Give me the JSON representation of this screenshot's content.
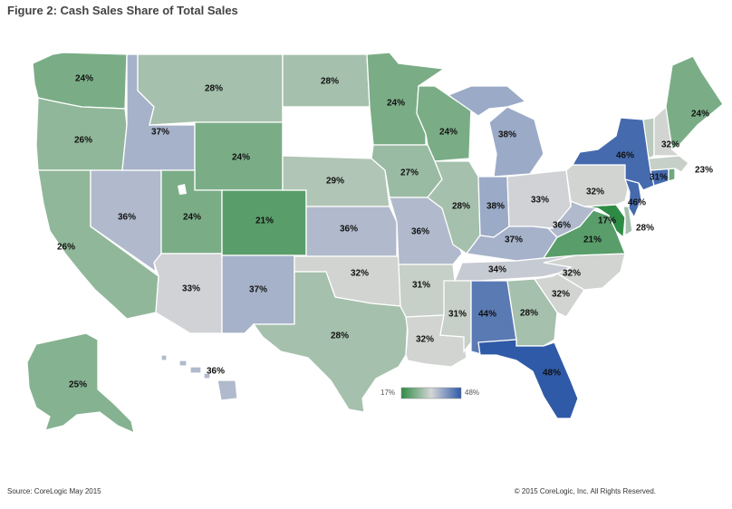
{
  "title": "Figure 2: Cash Sales Share of Total Sales",
  "source": "Source: CoreLogic May 2015",
  "copyright": "© 2015 CoreLogic, Inc. All Rights Reserved.",
  "legend": {
    "min_label": "17%",
    "max_label": "48%",
    "min_value": 17,
    "max_value": 48,
    "color_low": "#2e8b45",
    "color_mid": "#d6d6d6",
    "color_high": "#2f5aa8"
  },
  "states": [
    {
      "id": "WA",
      "label": "24%",
      "value": 24
    },
    {
      "id": "OR",
      "label": "26%",
      "value": 26
    },
    {
      "id": "CA",
      "label": "26%",
      "value": 26
    },
    {
      "id": "ID",
      "label": "37%",
      "value": 37
    },
    {
      "id": "NV",
      "label": "36%",
      "value": 36
    },
    {
      "id": "MT",
      "label": "28%",
      "value": 28
    },
    {
      "id": "WY",
      "label": "24%",
      "value": 24
    },
    {
      "id": "UT",
      "label": "24%",
      "value": 24
    },
    {
      "id": "AZ",
      "label": "33%",
      "value": 33
    },
    {
      "id": "CO",
      "label": "21%",
      "value": 21
    },
    {
      "id": "NM",
      "label": "37%",
      "value": 37
    },
    {
      "id": "ND",
      "label": "28%",
      "value": 28
    },
    {
      "id": "SD",
      "label": "",
      "value": null
    },
    {
      "id": "NE",
      "label": "29%",
      "value": 29
    },
    {
      "id": "KS",
      "label": "36%",
      "value": 36
    },
    {
      "id": "OK",
      "label": "32%",
      "value": 32
    },
    {
      "id": "TX",
      "label": "28%",
      "value": 28
    },
    {
      "id": "MN",
      "label": "24%",
      "value": 24
    },
    {
      "id": "IA",
      "label": "27%",
      "value": 27
    },
    {
      "id": "MO",
      "label": "36%",
      "value": 36
    },
    {
      "id": "AR",
      "label": "31%",
      "value": 31
    },
    {
      "id": "LA",
      "label": "32%",
      "value": 32
    },
    {
      "id": "WI",
      "label": "24%",
      "value": 24
    },
    {
      "id": "IL",
      "label": "28%",
      "value": 28
    },
    {
      "id": "MI",
      "label": "38%",
      "value": 38
    },
    {
      "id": "IN",
      "label": "38%",
      "value": 38
    },
    {
      "id": "OH",
      "label": "33%",
      "value": 33
    },
    {
      "id": "KY",
      "label": "37%",
      "value": 37
    },
    {
      "id": "TN",
      "label": "34%",
      "value": 34
    },
    {
      "id": "MS",
      "label": "31%",
      "value": 31
    },
    {
      "id": "AL",
      "label": "44%",
      "value": 44
    },
    {
      "id": "GA",
      "label": "28%",
      "value": 28
    },
    {
      "id": "FL",
      "label": "48%",
      "value": 48
    },
    {
      "id": "SC",
      "label": "32%",
      "value": 32
    },
    {
      "id": "NC",
      "label": "32%",
      "value": 32
    },
    {
      "id": "VA",
      "label": "21%",
      "value": 21
    },
    {
      "id": "WV",
      "label": "36%",
      "value": 36
    },
    {
      "id": "MD",
      "label": "17%",
      "value": 17
    },
    {
      "id": "DE",
      "label": "28%",
      "value": 28
    },
    {
      "id": "PA",
      "label": "32%",
      "value": 32
    },
    {
      "id": "NJ",
      "label": "46%",
      "value": 46
    },
    {
      "id": "NY",
      "label": "46%",
      "value": 46
    },
    {
      "id": "CT",
      "label": "",
      "value": 46
    },
    {
      "id": "MA",
      "label": "31%",
      "value": 31
    },
    {
      "id": "RI",
      "label": "23%",
      "value": 23
    },
    {
      "id": "VT",
      "label": "",
      "value": 30
    },
    {
      "id": "NH",
      "label": "32%",
      "value": 32
    },
    {
      "id": "ME",
      "label": "24%",
      "value": 24
    },
    {
      "id": "AK",
      "label": "25%",
      "value": 25
    },
    {
      "id": "HI",
      "label": "36%",
      "value": 36
    }
  ]
}
